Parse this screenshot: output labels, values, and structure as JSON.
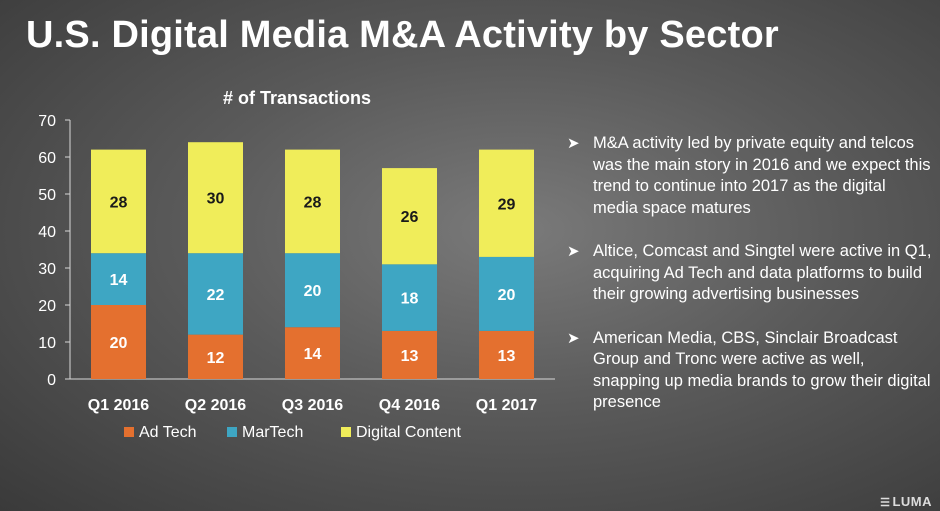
{
  "page": {
    "title": "U.S. Digital Media M&A Activity by Sector",
    "logo_text": "LUMA"
  },
  "chart_data": {
    "type": "bar",
    "stacked": true,
    "title": "# of Transactions",
    "xlabel": "",
    "ylabel": "",
    "ylim": [
      0,
      70
    ],
    "yticks": [
      0,
      10,
      20,
      30,
      40,
      50,
      60,
      70
    ],
    "grid": false,
    "legend_position": "bottom",
    "categories": [
      "Q1 2016",
      "Q2 2016",
      "Q3 2016",
      "Q4 2016",
      "Q1 2017"
    ],
    "series": [
      {
        "name": "Ad Tech",
        "values": [
          20,
          12,
          14,
          13,
          13
        ],
        "color": "#e4702f"
      },
      {
        "name": "MarTech",
        "values": [
          14,
          22,
          20,
          18,
          20
        ],
        "color": "#3ea6c3"
      },
      {
        "name": "Digital Content",
        "values": [
          28,
          30,
          28,
          26,
          29
        ],
        "color": "#f0ed5a"
      }
    ],
    "label_colors": {
      "Ad Tech": "#ffffff",
      "MarTech": "#ffffff",
      "Digital Content": "#1a1a1a"
    }
  },
  "bullets": [
    {
      "icon": "arrow-icon",
      "text": "M&A activity led by private equity and telcos was the main story in 2016 and we expect this trend to continue into 2017 as the digital media space matures"
    },
    {
      "icon": "arrow-icon",
      "text": "Altice, Comcast and Singtel were active in Q1, acquiring Ad Tech and data platforms to build their growing advertising businesses"
    },
    {
      "icon": "arrow-icon",
      "text": "American Media, CBS, Sinclair Broadcast Group and Tronc were active as well, snapping up media brands to grow their digital presence"
    }
  ]
}
